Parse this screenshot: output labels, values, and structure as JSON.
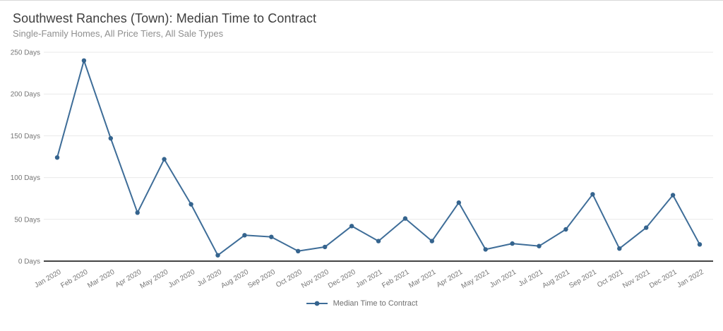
{
  "header": {
    "title": "Southwest Ranches (Town): Median Time to Contract",
    "subtitle": "Single-Family Homes, All Price Tiers, All Sale Types"
  },
  "legend": {
    "series_label": "Median Time to Contract",
    "marker_icon": "line-dot-marker"
  },
  "colors": {
    "line": "#3e6d98",
    "marker": "#35648e",
    "grid": "#e9e9e9",
    "axis": "#454545",
    "tick_text": "#767676",
    "title_text": "#3d3d3d",
    "subtitle_text": "#8f8f8f",
    "background": "#ffffff"
  },
  "chart_data": {
    "type": "line",
    "title": "Southwest Ranches (Town): Median Time to Contract",
    "subtitle": "Single-Family Homes, All Price Tiers, All Sale Types",
    "categories": [
      "Jan 2020",
      "Feb 2020",
      "Mar 2020",
      "Apr 2020",
      "May 2020",
      "Jun 2020",
      "Jul 2020",
      "Aug 2020",
      "Sep 2020",
      "Oct 2020",
      "Nov 2020",
      "Dec 2020",
      "Jan 2021",
      "Feb 2021",
      "Mar 2021",
      "Apr 2021",
      "May 2021",
      "Jun 2021",
      "Jul 2021",
      "Aug 2021",
      "Sep 2021",
      "Oct 2021",
      "Nov 2021",
      "Dec 2021",
      "Jan 2022"
    ],
    "series": [
      {
        "name": "Median Time to Contract",
        "values": [
          124,
          240,
          147,
          58,
          122,
          68,
          7,
          31,
          29,
          12,
          17,
          42,
          24,
          51,
          24,
          70,
          14,
          21,
          18,
          38,
          80,
          15,
          40,
          79,
          20
        ]
      }
    ],
    "xlabel": "",
    "ylabel": "",
    "ylim": [
      0,
      250
    ],
    "y_tick_step": 50,
    "y_tick_labels": [
      "0 Days",
      "50 Days",
      "100 Days",
      "150 Days",
      "200 Days",
      "250 Days"
    ],
    "x_tick_rotation_deg": -30,
    "grid": true,
    "legend_position": "bottom"
  }
}
